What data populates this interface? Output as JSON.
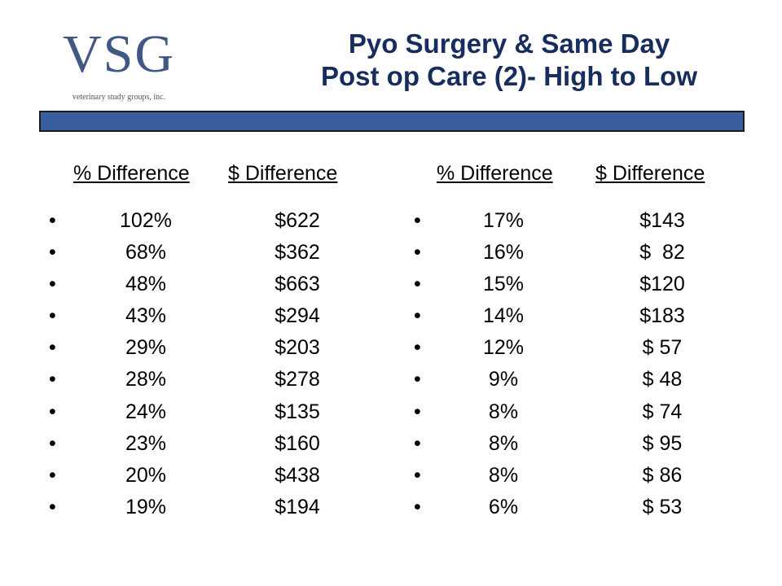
{
  "logo": {
    "mark": "VSG",
    "subtitle": "veterinary study groups, inc."
  },
  "title": {
    "line1": "Pyo Surgery & Same Day",
    "line2": "Post op Care (2)- High to Low"
  },
  "colors": {
    "title": "#162d5e",
    "band": "#3a5fa0",
    "logo": "#3f5886"
  },
  "left": {
    "header_pct": "% Difference",
    "header_amt": "$ Difference",
    "rows": [
      {
        "pct": "102%",
        "amt": "$622"
      },
      {
        "pct": "68%",
        "amt": "$362"
      },
      {
        "pct": "48%",
        "amt": "$663"
      },
      {
        "pct": "43%",
        "amt": "$294"
      },
      {
        "pct": "29%",
        "amt": "$203"
      },
      {
        "pct": "28%",
        "amt": "$278"
      },
      {
        "pct": "24%",
        "amt": "$135"
      },
      {
        "pct": "23%",
        "amt": "$160"
      },
      {
        "pct": "20%",
        "amt": "$438"
      },
      {
        "pct": "19%",
        "amt": "$194"
      }
    ]
  },
  "right": {
    "header_pct": "% Difference",
    "header_amt": "$ Difference",
    "rows": [
      {
        "pct": "17%",
        "amt": "$143"
      },
      {
        "pct": "16%",
        "amt": "$  82"
      },
      {
        "pct": "15%",
        "amt": "$120"
      },
      {
        "pct": "14%",
        "amt": "$183"
      },
      {
        "pct": "12%",
        "amt": "$ 57"
      },
      {
        "pct": "9%",
        "amt": "$ 48"
      },
      {
        "pct": "8%",
        "amt": "$ 74"
      },
      {
        "pct": "8%",
        "amt": "$ 95"
      },
      {
        "pct": "8%",
        "amt": "$ 86"
      },
      {
        "pct": "6%",
        "amt": "$ 53"
      }
    ]
  },
  "bullet": "•"
}
